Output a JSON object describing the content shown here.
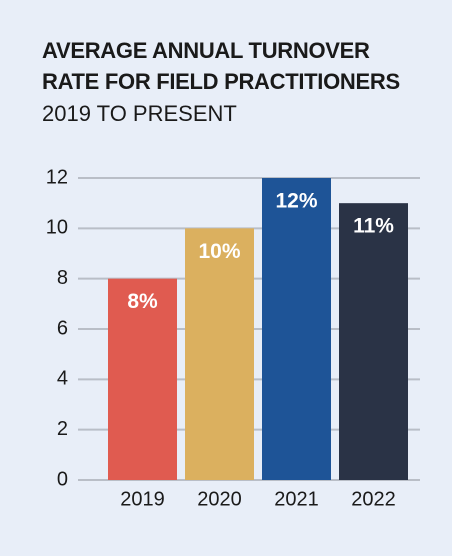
{
  "chart_data": {
    "type": "bar",
    "title": [
      "AVERAGE ANNUAL TURNOVER",
      "RATE FOR FIELD PRACTITIONERS"
    ],
    "subtitle": "2019 TO PRESENT",
    "categories": [
      "2019",
      "2020",
      "2021",
      "2022"
    ],
    "values": [
      8,
      10,
      12,
      11
    ],
    "value_labels": [
      "8%",
      "10%",
      "12%",
      "11%"
    ],
    "colors": [
      "#e05b50",
      "#dbb05f",
      "#1e5497",
      "#2a3346"
    ],
    "ylim": [
      0,
      12
    ],
    "yticks": [
      0,
      2,
      4,
      6,
      8,
      10,
      12
    ],
    "grid": true
  }
}
